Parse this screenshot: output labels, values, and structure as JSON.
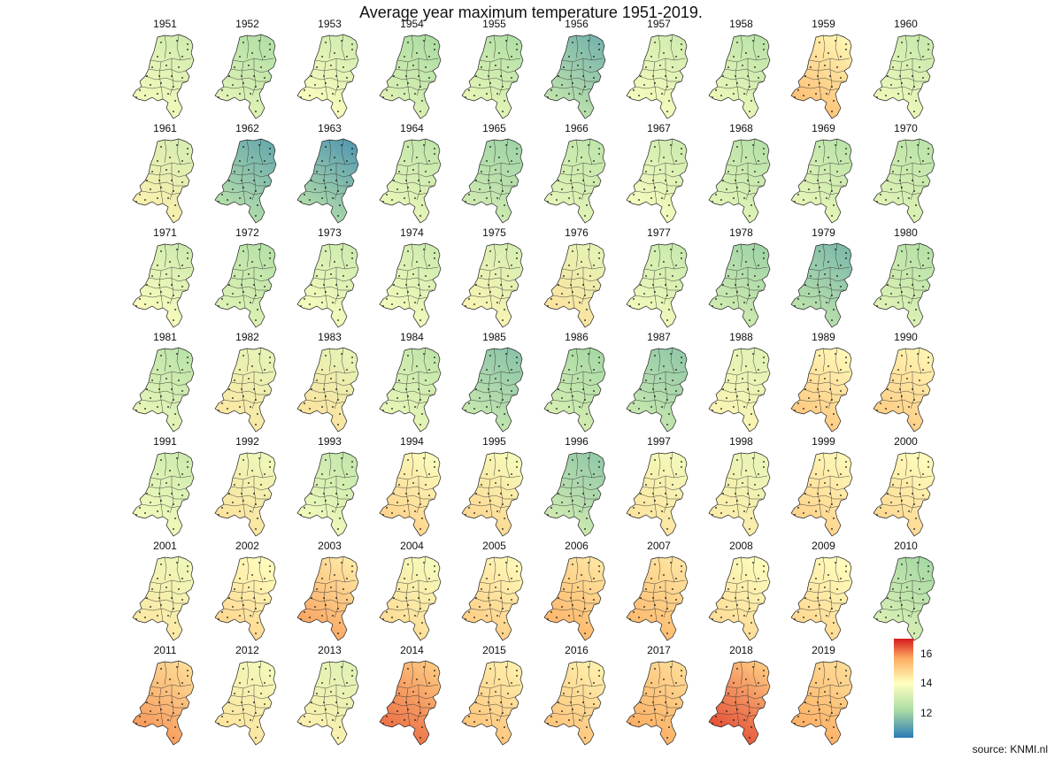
{
  "title": "Average year maximum temperature 1951-2019.",
  "source": "source: KNMI.nl",
  "legend": {
    "min": 10.3,
    "max": 17.0,
    "ticks": [
      {
        "value": 16,
        "label": "16"
      },
      {
        "value": 14,
        "label": "14"
      },
      {
        "value": 12,
        "label": "12"
      }
    ],
    "colors": [
      "#2c7bb6",
      "#abdda4",
      "#ffffbf",
      "#fdae61",
      "#d7191c"
    ]
  },
  "chart_data": {
    "type": "heatmap",
    "title": "Average year maximum temperature 1951-2019.",
    "value_range": [
      10.3,
      17.0
    ],
    "columns": 10,
    "panels": [
      {
        "year": "1951",
        "north": 13.0,
        "south": 13.8
      },
      {
        "year": "1952",
        "north": 12.3,
        "south": 13.5
      },
      {
        "year": "1953",
        "north": 13.0,
        "south": 14.0
      },
      {
        "year": "1954",
        "north": 12.2,
        "south": 13.4
      },
      {
        "year": "1955",
        "north": 12.3,
        "south": 13.6
      },
      {
        "year": "1956",
        "north": 11.4,
        "south": 12.8
      },
      {
        "year": "1957",
        "north": 13.0,
        "south": 13.9
      },
      {
        "year": "1958",
        "north": 12.5,
        "south": 13.7
      },
      {
        "year": "1959",
        "north": 14.2,
        "south": 15.4
      },
      {
        "year": "1960",
        "north": 12.8,
        "south": 13.7
      },
      {
        "year": "1961",
        "north": 13.1,
        "south": 14.3
      },
      {
        "year": "1962",
        "north": 11.2,
        "south": 12.6
      },
      {
        "year": "1963",
        "north": 10.9,
        "south": 12.5
      },
      {
        "year": "1964",
        "north": 12.6,
        "south": 13.6
      },
      {
        "year": "1965",
        "north": 12.0,
        "south": 13.1
      },
      {
        "year": "1966",
        "north": 12.6,
        "south": 13.5
      },
      {
        "year": "1967",
        "north": 12.9,
        "south": 13.9
      },
      {
        "year": "1968",
        "north": 12.4,
        "south": 13.5
      },
      {
        "year": "1969",
        "north": 12.5,
        "south": 13.6
      },
      {
        "year": "1970",
        "north": 12.5,
        "south": 13.4
      },
      {
        "year": "1971",
        "north": 12.9,
        "south": 14.0
      },
      {
        "year": "1972",
        "north": 12.4,
        "south": 13.4
      },
      {
        "year": "1973",
        "north": 12.9,
        "south": 13.9
      },
      {
        "year": "1974",
        "north": 12.9,
        "south": 13.8
      },
      {
        "year": "1975",
        "north": 13.1,
        "south": 14.2
      },
      {
        "year": "1976",
        "north": 13.4,
        "south": 14.6
      },
      {
        "year": "1977",
        "north": 12.8,
        "south": 13.8
      },
      {
        "year": "1978",
        "north": 12.0,
        "south": 13.1
      },
      {
        "year": "1979",
        "north": 11.5,
        "south": 12.7
      },
      {
        "year": "1980",
        "north": 12.4,
        "south": 13.4
      },
      {
        "year": "1981",
        "north": 12.5,
        "south": 13.6
      },
      {
        "year": "1982",
        "north": 13.4,
        "south": 14.5
      },
      {
        "year": "1983",
        "north": 13.4,
        "south": 14.6
      },
      {
        "year": "1984",
        "north": 12.6,
        "south": 13.6
      },
      {
        "year": "1985",
        "north": 11.7,
        "south": 12.9
      },
      {
        "year": "1986",
        "north": 12.1,
        "south": 13.2
      },
      {
        "year": "1987",
        "north": 11.8,
        "south": 12.9
      },
      {
        "year": "1988",
        "north": 13.3,
        "south": 14.2
      },
      {
        "year": "1989",
        "north": 14.1,
        "south": 15.2
      },
      {
        "year": "1990",
        "north": 14.2,
        "south": 15.1
      },
      {
        "year": "1991",
        "north": 12.9,
        "south": 13.8
      },
      {
        "year": "1992",
        "north": 13.6,
        "south": 14.6
      },
      {
        "year": "1993",
        "north": 12.7,
        "south": 13.8
      },
      {
        "year": "1994",
        "north": 13.9,
        "south": 15.0
      },
      {
        "year": "1995",
        "north": 13.8,
        "south": 14.9
      },
      {
        "year": "1996",
        "north": 11.8,
        "south": 13.1
      },
      {
        "year": "1997",
        "north": 13.7,
        "south": 14.6
      },
      {
        "year": "1998",
        "north": 13.5,
        "south": 14.4
      },
      {
        "year": "1999",
        "north": 14.1,
        "south": 15.0
      },
      {
        "year": "2000",
        "north": 14.0,
        "south": 14.9
      },
      {
        "year": "2001",
        "north": 13.6,
        "south": 14.5
      },
      {
        "year": "2002",
        "north": 14.0,
        "south": 14.9
      },
      {
        "year": "2003",
        "north": 14.4,
        "south": 15.8
      },
      {
        "year": "2004",
        "north": 13.8,
        "south": 14.8
      },
      {
        "year": "2005",
        "north": 14.1,
        "south": 15.1
      },
      {
        "year": "2006",
        "north": 14.5,
        "south": 15.6
      },
      {
        "year": "2007",
        "north": 14.5,
        "south": 15.5
      },
      {
        "year": "2008",
        "north": 13.9,
        "south": 14.8
      },
      {
        "year": "2009",
        "north": 14.0,
        "south": 14.9
      },
      {
        "year": "2010",
        "north": 12.1,
        "south": 13.3
      },
      {
        "year": "2011",
        "north": 14.7,
        "south": 15.9
      },
      {
        "year": "2012",
        "north": 13.7,
        "south": 14.6
      },
      {
        "year": "2013",
        "north": 13.3,
        "south": 14.3
      },
      {
        "year": "2014",
        "north": 15.1,
        "south": 16.3
      },
      {
        "year": "2015",
        "north": 14.3,
        "south": 15.3
      },
      {
        "year": "2016",
        "north": 14.3,
        "south": 15.3
      },
      {
        "year": "2017",
        "north": 14.7,
        "south": 15.7
      },
      {
        "year": "2018",
        "north": 15.1,
        "south": 16.6
      },
      {
        "year": "2019",
        "north": 14.7,
        "south": 15.7
      }
    ]
  }
}
